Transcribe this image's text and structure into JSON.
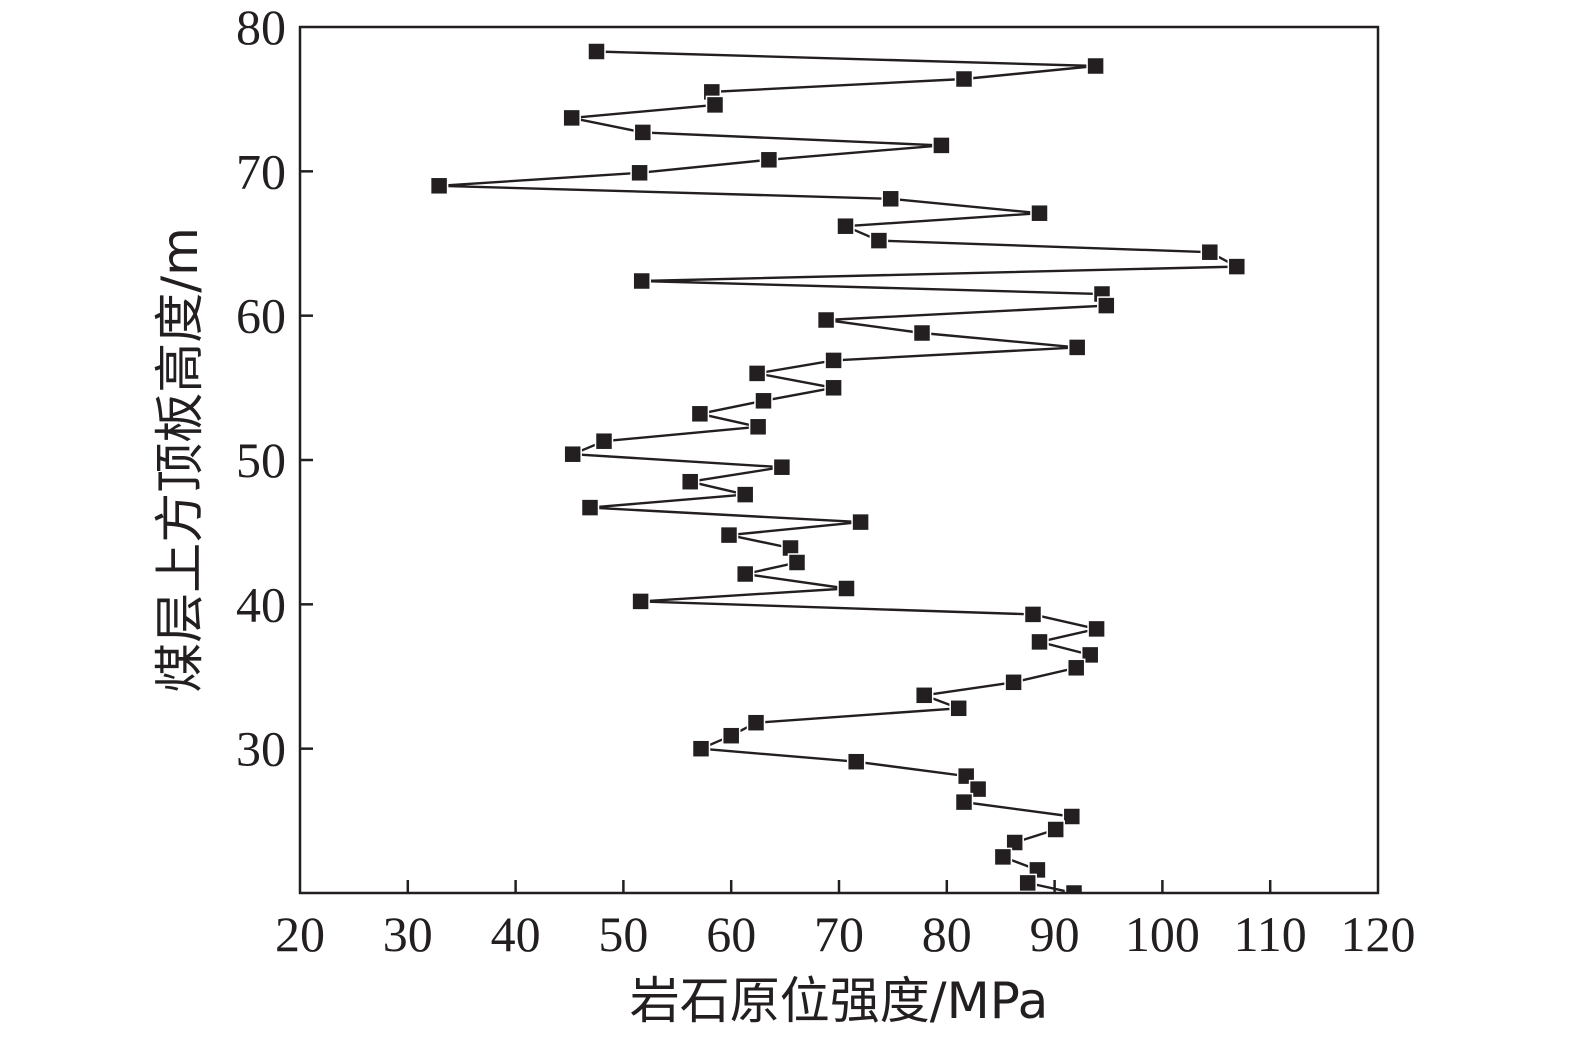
{
  "chart_data": {
    "type": "line",
    "xlabel": "岩石原位强度/MPa",
    "ylabel": "煤层上方顶板高度/m",
    "xlim": [
      20,
      120
    ],
    "ylim": [
      20,
      80
    ],
    "x_ticks": [
      "20",
      "30",
      "40",
      "50",
      "60",
      "70",
      "80",
      "90",
      "100",
      "110",
      "120"
    ],
    "y_ticks": [
      "30",
      "40",
      "50",
      "60",
      "70",
      "80"
    ],
    "marker": "square",
    "grid": false,
    "line_color": "#231f20",
    "series": [
      {
        "points": [
          [
            47.5,
            78.3
          ],
          [
            93.8,
            77.3
          ],
          [
            81.6,
            76.4
          ],
          [
            58.2,
            75.5
          ],
          [
            58.5,
            74.6
          ],
          [
            45.2,
            73.7
          ],
          [
            51.8,
            72.7
          ],
          [
            79.5,
            71.8
          ],
          [
            63.5,
            70.8
          ],
          [
            51.5,
            69.9
          ],
          [
            32.9,
            69.0
          ],
          [
            74.8,
            68.1
          ],
          [
            88.6,
            67.1
          ],
          [
            70.6,
            66.2
          ],
          [
            73.7,
            65.2
          ],
          [
            104.4,
            64.4
          ],
          [
            106.9,
            63.4
          ],
          [
            51.7,
            62.4
          ],
          [
            94.4,
            61.5
          ],
          [
            94.8,
            60.7
          ],
          [
            68.8,
            59.7
          ],
          [
            77.7,
            58.8
          ],
          [
            92.1,
            57.8
          ],
          [
            69.5,
            56.9
          ],
          [
            62.4,
            56.0
          ],
          [
            69.5,
            55.0
          ],
          [
            63.0,
            54.1
          ],
          [
            57.1,
            53.2
          ],
          [
            62.5,
            52.3
          ],
          [
            48.2,
            51.3
          ],
          [
            45.3,
            50.4
          ],
          [
            64.7,
            49.5
          ],
          [
            56.2,
            48.5
          ],
          [
            61.3,
            47.6
          ],
          [
            46.9,
            46.7
          ],
          [
            72.0,
            45.7
          ],
          [
            59.8,
            44.8
          ],
          [
            65.5,
            43.9
          ],
          [
            66.1,
            42.9
          ],
          [
            61.3,
            42.1
          ],
          [
            70.7,
            41.1
          ],
          [
            51.6,
            40.2
          ],
          [
            88.0,
            39.3
          ],
          [
            93.9,
            38.3
          ],
          [
            88.6,
            37.4
          ],
          [
            93.3,
            36.5
          ],
          [
            92.0,
            35.6
          ],
          [
            86.2,
            34.6
          ],
          [
            77.9,
            33.7
          ],
          [
            81.1,
            32.8
          ],
          [
            62.3,
            31.8
          ],
          [
            60.0,
            30.9
          ],
          [
            57.2,
            30.0
          ],
          [
            71.6,
            29.1
          ],
          [
            81.8,
            28.1
          ],
          [
            82.9,
            27.2
          ],
          [
            81.6,
            26.3
          ],
          [
            91.6,
            25.3
          ],
          [
            90.1,
            24.4
          ],
          [
            86.3,
            23.5
          ],
          [
            85.2,
            22.5
          ],
          [
            88.4,
            21.6
          ],
          [
            87.5,
            20.7
          ],
          [
            91.8,
            20.0
          ]
        ]
      }
    ]
  }
}
